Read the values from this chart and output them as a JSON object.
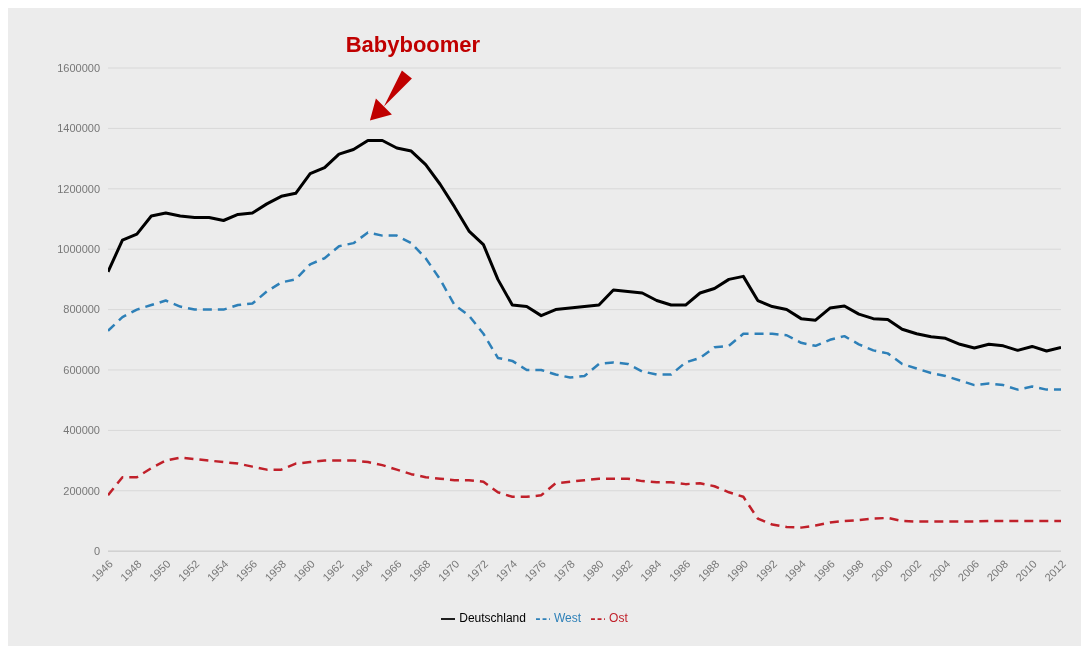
{
  "chart_data": {
    "type": "line",
    "x": [
      1946,
      1947,
      1948,
      1949,
      1950,
      1951,
      1952,
      1953,
      1954,
      1955,
      1956,
      1957,
      1958,
      1959,
      1960,
      1961,
      1962,
      1963,
      1964,
      1965,
      1966,
      1967,
      1968,
      1969,
      1970,
      1971,
      1972,
      1973,
      1974,
      1975,
      1976,
      1977,
      1978,
      1979,
      1980,
      1981,
      1982,
      1983,
      1984,
      1985,
      1986,
      1987,
      1988,
      1989,
      1990,
      1991,
      1992,
      1993,
      1994,
      1995,
      1996,
      1997,
      1998,
      1999,
      2000,
      2001,
      2002,
      2003,
      2004,
      2005,
      2006,
      2007,
      2008,
      2009,
      2010,
      2011,
      2012
    ],
    "series": [
      {
        "name": "Deutschland",
        "color": "#000000",
        "line_style": "solid",
        "values": [
          925000,
          1030000,
          1050000,
          1110000,
          1120000,
          1110000,
          1105000,
          1105000,
          1095000,
          1115000,
          1120000,
          1150000,
          1175000,
          1185000,
          1250000,
          1270000,
          1315000,
          1330000,
          1360000,
          1360000,
          1335000,
          1325000,
          1280000,
          1215000,
          1140000,
          1060000,
          1015000,
          900000,
          815000,
          810000,
          780000,
          800000,
          805000,
          810000,
          815000,
          865000,
          860000,
          855000,
          830000,
          815000,
          815000,
          855000,
          870000,
          900000,
          910000,
          830000,
          810000,
          800000,
          770000,
          765000,
          805000,
          812000,
          785000,
          770000,
          767000,
          735000,
          720000,
          710000,
          705000,
          685000,
          673000,
          685000,
          680000,
          665000,
          678000,
          663000,
          675000
        ]
      },
      {
        "name": "West",
        "color": "#2e80b8",
        "line_style": "dashed",
        "values": [
          730000,
          775000,
          800000,
          815000,
          830000,
          810000,
          800000,
          800000,
          800000,
          815000,
          820000,
          860000,
          890000,
          900000,
          950000,
          970000,
          1010000,
          1020000,
          1055000,
          1045000,
          1045000,
          1020000,
          970000,
          900000,
          815000,
          780000,
          720000,
          640000,
          630000,
          600000,
          600000,
          585000,
          575000,
          580000,
          620000,
          625000,
          620000,
          595000,
          585000,
          585000,
          625000,
          640000,
          675000,
          680000,
          720000,
          720000,
          720000,
          715000,
          690000,
          680000,
          700000,
          712000,
          685000,
          665000,
          655000,
          620000,
          605000,
          590000,
          580000,
          565000,
          550000,
          555000,
          550000,
          535000,
          545000,
          535000,
          535000
        ]
      },
      {
        "name": "Ost",
        "color": "#c0202a",
        "line_style": "dashed",
        "values": [
          185000,
          245000,
          245000,
          275000,
          300000,
          310000,
          305000,
          300000,
          295000,
          290000,
          280000,
          270000,
          270000,
          290000,
          295000,
          300000,
          300000,
          300000,
          295000,
          285000,
          270000,
          255000,
          245000,
          240000,
          235000,
          235000,
          230000,
          195000,
          180000,
          180000,
          185000,
          225000,
          230000,
          235000,
          240000,
          240000,
          240000,
          232000,
          228000,
          228000,
          222000,
          225000,
          215000,
          195000,
          180000,
          108000,
          88000,
          80000,
          78000,
          85000,
          95000,
          100000,
          103000,
          108000,
          110000,
          100000,
          98000,
          98000,
          98000,
          98000,
          98000,
          100000,
          100000,
          100000,
          100000,
          100000,
          100000
        ]
      }
    ],
    "xlim": [
      1946,
      2012
    ],
    "xticks": [
      1946,
      1948,
      1950,
      1952,
      1954,
      1956,
      1958,
      1960,
      1962,
      1964,
      1966,
      1968,
      1970,
      1972,
      1974,
      1976,
      1978,
      1980,
      1982,
      1984,
      1986,
      1988,
      1990,
      1992,
      1994,
      1996,
      1998,
      2000,
      2002,
      2004,
      2006,
      2008,
      2010,
      2012
    ],
    "ylim": [
      0,
      1600000
    ],
    "yticks": [
      0,
      200000,
      400000,
      600000,
      800000,
      1000000,
      1200000,
      1400000,
      1600000
    ],
    "annotations": [
      "Babyboomer"
    ],
    "grid": "y",
    "legend": "bottom",
    "marker": "none"
  }
}
